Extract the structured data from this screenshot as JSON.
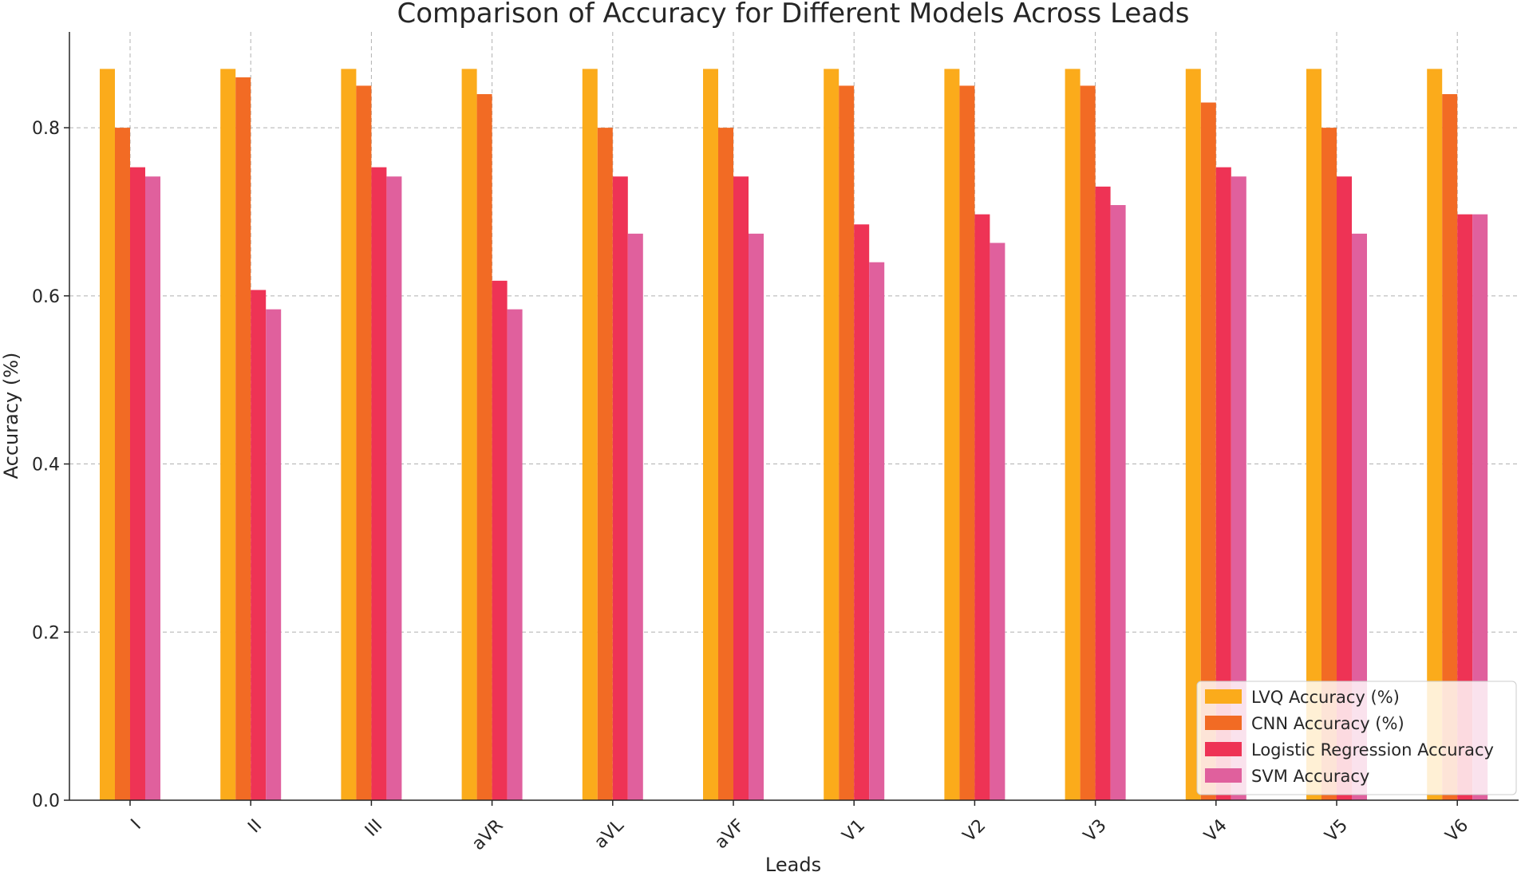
{
  "chart_data": {
    "type": "bar",
    "title": "Comparison of Accuracy for Different Models Across Leads",
    "xlabel": "Leads",
    "ylabel": "Accuracy (%)",
    "ylim": [
      0,
      0.914
    ],
    "yticks": [
      "0.0",
      "0.2",
      "0.4",
      "0.6",
      "0.8"
    ],
    "grid": true,
    "legend_position": "bottom-right",
    "categories": [
      "I",
      "II",
      "III",
      "aVR",
      "aVL",
      "aVF",
      "V1",
      "V2",
      "V3",
      "V4",
      "V5",
      "V6"
    ],
    "series": [
      {
        "name": "LVQ Accuracy (%)",
        "color": "#fbab1b",
        "values": [
          0.87,
          0.87,
          0.87,
          0.87,
          0.87,
          0.87,
          0.87,
          0.87,
          0.87,
          0.87,
          0.87,
          0.87
        ]
      },
      {
        "name": "CNN Accuracy (%)",
        "color": "#f26b24",
        "values": [
          0.8,
          0.86,
          0.85,
          0.84,
          0.8,
          0.8,
          0.85,
          0.85,
          0.85,
          0.83,
          0.8,
          0.84
        ]
      },
      {
        "name": "Logistic Regression Accuracy",
        "color": "#ee3355",
        "values": [
          0.753,
          0.607,
          0.753,
          0.618,
          0.742,
          0.742,
          0.685,
          0.697,
          0.73,
          0.753,
          0.742,
          0.697
        ]
      },
      {
        "name": "SVM Accuracy",
        "color": "#e0609d",
        "values": [
          0.742,
          0.584,
          0.742,
          0.584,
          0.674,
          0.674,
          0.64,
          0.663,
          0.708,
          0.742,
          0.674,
          0.697
        ]
      }
    ]
  }
}
